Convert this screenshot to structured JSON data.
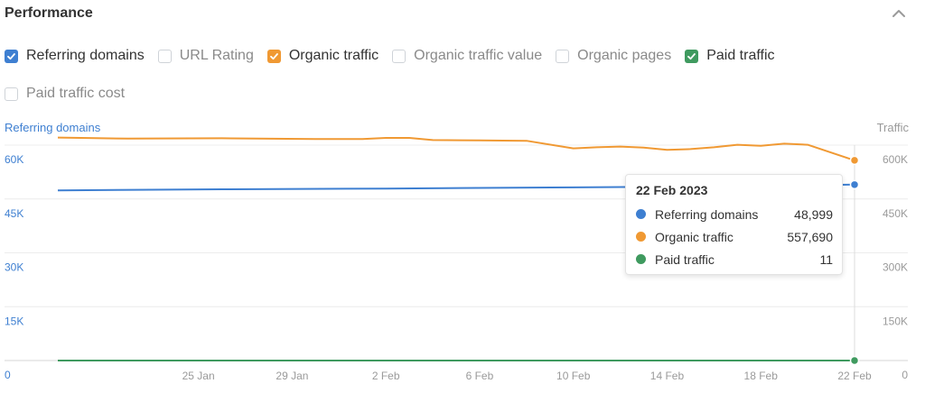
{
  "header": {
    "title": "Performance"
  },
  "checkboxes": [
    {
      "label": "Referring domains",
      "checked": true,
      "color": "#3e7fd1"
    },
    {
      "label": "URL Rating",
      "checked": false,
      "color": ""
    },
    {
      "label": "Organic traffic",
      "checked": true,
      "color": "#f09933"
    },
    {
      "label": "Organic traffic value",
      "checked": false,
      "color": ""
    },
    {
      "label": "Organic pages",
      "checked": false,
      "color": ""
    },
    {
      "label": "Paid traffic",
      "checked": true,
      "color": "#3f9a5f"
    },
    {
      "label": "Paid traffic cost",
      "checked": false,
      "color": ""
    }
  ],
  "tooltip": {
    "date": "22 Feb 2023",
    "rows": [
      {
        "name": "Referring domains",
        "value": "48,999",
        "color": "#3e7fd1"
      },
      {
        "name": "Organic traffic",
        "value": "557,690",
        "color": "#f09933"
      },
      {
        "name": "Paid traffic",
        "value": "11",
        "color": "#3f9a5f"
      }
    ]
  },
  "chart_data": {
    "type": "line",
    "xlabel": "",
    "ylabel_left": "Referring domains",
    "ylabel_right": "Traffic",
    "x_ticks": [
      "25 Jan",
      "29 Jan",
      "2 Feb",
      "6 Feb",
      "10 Feb",
      "14 Feb",
      "18 Feb",
      "22 Feb"
    ],
    "x_range": [
      "19 Jan",
      "22 Feb"
    ],
    "ylim_left": [
      0,
      60000
    ],
    "ylim_right": [
      0,
      600000
    ],
    "yticks_left": [
      {
        "value": 0,
        "label": "0"
      },
      {
        "value": 15000,
        "label": "15K"
      },
      {
        "value": 30000,
        "label": "30K"
      },
      {
        "value": 45000,
        "label": "45K"
      },
      {
        "value": 60000,
        "label": "60K"
      }
    ],
    "yticks_right": [
      {
        "value": 0,
        "label": "0"
      },
      {
        "value": 150000,
        "label": "150K"
      },
      {
        "value": 300000,
        "label": "300K"
      },
      {
        "value": 450000,
        "label": "450K"
      },
      {
        "value": 600000,
        "label": "600K"
      }
    ],
    "grid": true,
    "series": [
      {
        "name": "Referring domains",
        "axis": "left",
        "color": "#3e7fd1",
        "points": [
          [
            "19 Jan",
            47400
          ],
          [
            "26 Jan",
            47700
          ],
          [
            "2 Feb",
            47900
          ],
          [
            "9 Feb",
            48200
          ],
          [
            "16 Feb",
            48500
          ],
          [
            "20 Feb",
            48800
          ],
          [
            "22 Feb",
            48999
          ]
        ]
      },
      {
        "name": "Organic traffic",
        "axis": "left",
        "color": "#f09933",
        "points": [
          [
            "19 Jan",
            621000
          ],
          [
            "20 Jan",
            620000
          ],
          [
            "22 Jan",
            618000
          ],
          [
            "26 Jan",
            619000
          ],
          [
            "30 Jan",
            617000
          ],
          [
            "1 Feb",
            617000
          ],
          [
            "2 Feb",
            620000
          ],
          [
            "3 Feb",
            620000
          ],
          [
            "4 Feb",
            614000
          ],
          [
            "6 Feb",
            613000
          ],
          [
            "8 Feb",
            612000
          ],
          [
            "10 Feb",
            591000
          ],
          [
            "11 Feb",
            594000
          ],
          [
            "12 Feb",
            596000
          ],
          [
            "13 Feb",
            593000
          ],
          [
            "14 Feb",
            587000
          ],
          [
            "15 Feb",
            589000
          ],
          [
            "16 Feb",
            594000
          ],
          [
            "17 Feb",
            601000
          ],
          [
            "18 Feb",
            598000
          ],
          [
            "19 Feb",
            604000
          ],
          [
            "20 Feb",
            601000
          ],
          [
            "22 Feb",
            557690
          ]
        ]
      },
      {
        "name": "Paid traffic",
        "axis": "right",
        "color": "#3f9a5f",
        "points": [
          [
            "19 Jan",
            11
          ],
          [
            "25 Jan",
            11
          ],
          [
            "2 Feb",
            11
          ],
          [
            "10 Feb",
            11
          ],
          [
            "18 Feb",
            11
          ],
          [
            "22 Feb",
            11
          ]
        ]
      }
    ]
  }
}
